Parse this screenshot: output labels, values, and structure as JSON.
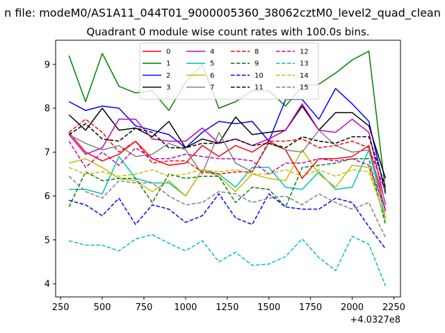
{
  "suptitle": "n file: modeM0/AS1A11_044T01_9000005360_38062cztM0_level2_quad_clean",
  "chart_data": {
    "type": "line",
    "title": "Quadrant 0 module wise count rates with 100.0s bins.",
    "xlabel": "",
    "ylabel": "",
    "x_offset_text": "+4.0327e8",
    "xlim": [
      220,
      2290
    ],
    "ylim": [
      3.7,
      9.55
    ],
    "xticks": [
      250,
      500,
      750,
      1000,
      1250,
      1500,
      1750,
      2000,
      2250
    ],
    "yticks": [
      4,
      5,
      6,
      7,
      8,
      9
    ],
    "grid": false,
    "legend_position": "top-center",
    "x": [
      300,
      400,
      500,
      600,
      700,
      800,
      900,
      1000,
      1100,
      1200,
      1300,
      1400,
      1500,
      1600,
      1700,
      1800,
      1900,
      2000,
      2100,
      2200
    ],
    "series": [
      {
        "name": "0",
        "color": "#ff0000",
        "style": "solid",
        "values": [
          7.45,
          7.0,
          6.8,
          6.95,
          7.25,
          6.85,
          6.7,
          6.75,
          7.15,
          6.9,
          7.15,
          7.0,
          7.25,
          7.05,
          6.4,
          6.85,
          6.85,
          6.9,
          7.15,
          5.65
        ]
      },
      {
        "name": "1",
        "color": "#008000",
        "style": "solid",
        "values": [
          9.2,
          8.15,
          9.25,
          8.5,
          8.35,
          8.4,
          7.95,
          8.6,
          9.0,
          8.0,
          8.15,
          8.4,
          8.4,
          8.05,
          8.5,
          8.55,
          8.8,
          9.1,
          9.3,
          6.1
        ]
      },
      {
        "name": "2",
        "color": "#0000ff",
        "style": "solid",
        "values": [
          8.15,
          7.95,
          8.05,
          8.0,
          7.6,
          7.5,
          7.4,
          7.1,
          7.45,
          7.7,
          7.65,
          7.7,
          7.25,
          8.2,
          8.2,
          7.75,
          8.45,
          8.1,
          7.7,
          6.05
        ]
      },
      {
        "name": "3",
        "color": "#000000",
        "style": "solid",
        "values": [
          7.85,
          7.5,
          8.0,
          7.5,
          7.55,
          7.35,
          7.7,
          7.1,
          7.3,
          7.2,
          7.8,
          7.4,
          7.45,
          7.5,
          8.05,
          7.5,
          7.9,
          7.9,
          7.6,
          6.4
        ]
      },
      {
        "name": "4",
        "color": "#bf00bf",
        "style": "solid",
        "values": [
          7.4,
          6.95,
          7.1,
          7.75,
          7.75,
          7.3,
          7.25,
          7.25,
          7.55,
          7.2,
          7.3,
          7.15,
          7.3,
          7.5,
          8.1,
          7.5,
          7.45,
          7.75,
          7.45,
          5.8
        ]
      },
      {
        "name": "5",
        "color": "#00bfbf",
        "style": "solid",
        "values": [
          6.15,
          6.15,
          6.05,
          6.9,
          6.4,
          6.3,
          6.3,
          6.0,
          6.6,
          6.5,
          6.2,
          6.65,
          6.65,
          6.2,
          6.15,
          6.55,
          6.15,
          6.2,
          7.05,
          5.5
        ]
      },
      {
        "name": "6",
        "color": "#bfbf00",
        "style": "solid",
        "values": [
          6.75,
          6.85,
          6.65,
          6.4,
          6.35,
          6.1,
          6.35,
          6.0,
          6.6,
          6.45,
          6.1,
          6.5,
          6.4,
          6.35,
          7.05,
          6.5,
          6.2,
          6.7,
          6.65,
          5.45
        ]
      },
      {
        "name": "7",
        "color": "#808080",
        "style": "solid",
        "values": [
          7.4,
          7.2,
          7.05,
          7.15,
          6.9,
          6.95,
          7.2,
          7.05,
          6.5,
          7.45,
          6.75,
          6.55,
          7.2,
          7.05,
          7.0,
          7.5,
          7.15,
          7.0,
          7.05,
          5.85
        ]
      },
      {
        "name": "8",
        "color": "#ff0000",
        "style": "dashed",
        "values": [
          7.45,
          7.75,
          7.45,
          7.0,
          7.25,
          6.75,
          6.8,
          6.8,
          6.55,
          6.5,
          6.55,
          6.55,
          7.25,
          7.25,
          7.3,
          7.1,
          7.15,
          7.25,
          7.1,
          6.1
        ]
      },
      {
        "name": "9",
        "color": "#008000",
        "style": "dashed",
        "values": [
          5.75,
          6.55,
          6.35,
          6.4,
          6.4,
          5.85,
          6.5,
          6.4,
          6.45,
          6.45,
          5.85,
          6.2,
          6.15,
          5.75,
          6.65,
          6.7,
          6.75,
          6.85,
          6.85,
          5.35
        ]
      },
      {
        "name": "10",
        "color": "#0000ff",
        "style": "dashed",
        "values": [
          5.9,
          5.8,
          5.55,
          5.95,
          5.35,
          5.8,
          5.7,
          5.4,
          5.55,
          6.05,
          5.5,
          5.35,
          6.05,
          5.75,
          5.7,
          5.7,
          5.95,
          5.85,
          5.3,
          4.8
        ]
      },
      {
        "name": "11",
        "color": "#000000",
        "style": "dashed",
        "values": [
          7.4,
          7.65,
          7.3,
          7.25,
          7.55,
          7.45,
          7.1,
          7.1,
          7.2,
          7.2,
          7.3,
          7.15,
          7.2,
          7.1,
          7.35,
          7.25,
          7.2,
          7.35,
          7.35,
          6.2
        ]
      },
      {
        "name": "12",
        "color": "#bf00bf",
        "style": "dashed",
        "values": [
          7.25,
          6.65,
          7.0,
          6.7,
          7.1,
          6.85,
          6.85,
          6.95,
          6.9,
          6.85,
          6.85,
          6.8,
          6.5,
          6.75,
          6.75,
          6.85,
          6.8,
          6.85,
          6.7,
          5.7
        ]
      },
      {
        "name": "13",
        "color": "#00bfbf",
        "style": "dashed",
        "values": [
          4.98,
          4.88,
          4.88,
          4.75,
          5.02,
          5.12,
          4.92,
          4.75,
          4.98,
          4.5,
          4.72,
          4.42,
          4.45,
          4.62,
          5.02,
          4.6,
          4.3,
          5.08,
          4.9,
          3.95
        ]
      },
      {
        "name": "14",
        "color": "#bfbf00",
        "style": "dashed",
        "values": [
          6.65,
          6.5,
          6.55,
          6.45,
          6.5,
          6.6,
          6.45,
          6.5,
          6.6,
          6.55,
          6.6,
          6.5,
          6.5,
          6.6,
          6.45,
          6.6,
          6.45,
          6.6,
          6.55,
          5.5
        ]
      },
      {
        "name": "15",
        "color": "#808080",
        "style": "dashed",
        "values": [
          6.45,
          6.1,
          5.95,
          6.35,
          6.3,
          6.3,
          6.0,
          5.8,
          5.85,
          6.1,
          6.05,
          5.85,
          5.95,
          6.0,
          5.8,
          6.05,
          5.85,
          5.7,
          5.85,
          5.05
        ]
      }
    ]
  }
}
